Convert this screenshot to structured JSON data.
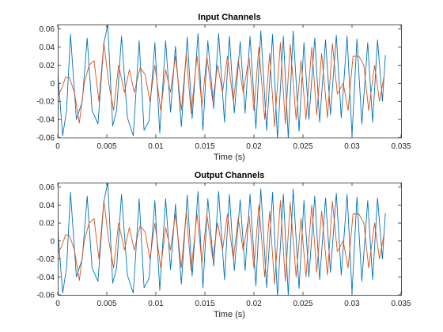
{
  "colors": {
    "series_1": "#0072bd",
    "series_2": "#d95319",
    "axes": "#262626",
    "background": "#ffffff"
  },
  "chart_data": [
    {
      "type": "line",
      "title": "Input Channels",
      "xlabel": "Time (s)",
      "ylabel": "",
      "xlim": [
        0,
        0.035
      ],
      "ylim": [
        -0.06,
        0.065
      ],
      "grid": false,
      "x_ticks": [
        "0",
        "0.005",
        "0.01",
        "0.015",
        "0.02",
        "0.025",
        "0.03",
        "0.035"
      ],
      "x_tick_values": [
        0,
        0.005,
        0.01,
        0.015,
        0.02,
        0.025,
        0.03,
        0.035
      ],
      "y_ticks": [
        "-0.06",
        "-0.04",
        "-0.02",
        "0",
        "0.02",
        "0.04",
        "0.06"
      ],
      "y_tick_values": [
        -0.06,
        -0.04,
        -0.02,
        0,
        0.02,
        0.04,
        0.06
      ],
      "series": [
        {
          "color": "#0072bd",
          "x": [
            0,
            0.0005,
            0.0009,
            0.0013,
            0.0019,
            0.0025,
            0.003,
            0.0035,
            0.0041,
            0.0047,
            0.0051,
            0.0056,
            0.006,
            0.0065,
            0.0071,
            0.0077,
            0.0083,
            0.0088,
            0.0093,
            0.0099,
            0.0104,
            0.011,
            0.0115,
            0.012,
            0.0126,
            0.0132,
            0.0137,
            0.0143,
            0.0148,
            0.0153,
            0.0159,
            0.0164,
            0.017,
            0.0175,
            0.018,
            0.0186,
            0.0191,
            0.0196,
            0.0202,
            0.0207,
            0.0213,
            0.0219,
            0.0224,
            0.023,
            0.0235,
            0.024,
            0.0246,
            0.0251,
            0.0256,
            0.0262,
            0.0267,
            0.0273,
            0.0278,
            0.0284,
            0.0289,
            0.0295,
            0.03,
            0.0305,
            0.031,
            0.0316,
            0.0321,
            0.0326,
            0.0331,
            0.0334
          ],
          "y": [
            0.012,
            -0.058,
            -0.03,
            0.054,
            -0.04,
            -0.02,
            0.05,
            -0.03,
            -0.045,
            0.044,
            0.065,
            -0.047,
            -0.03,
            0.052,
            -0.038,
            -0.058,
            0.047,
            -0.052,
            -0.042,
            0.045,
            -0.055,
            0.047,
            -0.032,
            0.041,
            -0.048,
            0.051,
            -0.039,
            0.055,
            -0.052,
            0.047,
            -0.028,
            0.055,
            -0.043,
            0.052,
            -0.033,
            0.046,
            -0.033,
            0.052,
            -0.05,
            0.058,
            -0.052,
            0.054,
            -0.062,
            0.052,
            -0.061,
            0.058,
            -0.053,
            0.045,
            -0.04,
            0.05,
            -0.043,
            0.048,
            -0.035,
            0.053,
            -0.038,
            0.052,
            -0.058,
            0.049,
            -0.045,
            0.045,
            -0.043,
            0.048,
            -0.02,
            0.031
          ]
        },
        {
          "color": "#d95319",
          "x": [
            0,
            0.0004,
            0.0008,
            0.0012,
            0.0017,
            0.0022,
            0.0027,
            0.0032,
            0.0037,
            0.0042,
            0.0047,
            0.0052,
            0.0057,
            0.0062,
            0.0068,
            0.0073,
            0.0078,
            0.0084,
            0.0089,
            0.0094,
            0.0099,
            0.0105,
            0.011,
            0.0115,
            0.012,
            0.0126,
            0.0131,
            0.0136,
            0.0142,
            0.0147,
            0.0152,
            0.0158,
            0.0163,
            0.0168,
            0.0173,
            0.0179,
            0.0184,
            0.0189,
            0.0195,
            0.02,
            0.0205,
            0.0211,
            0.0216,
            0.0221,
            0.0227,
            0.0232,
            0.0237,
            0.0243,
            0.0248,
            0.0253,
            0.0259,
            0.0264,
            0.0269,
            0.0275,
            0.028,
            0.0285,
            0.0291,
            0.0296,
            0.0301,
            0.0307,
            0.0312,
            0.0317,
            0.0323,
            0.0328,
            0.0333
          ],
          "y": [
            -0.014,
            -0.006,
            0.007,
            0.006,
            -0.01,
            -0.044,
            0.0,
            0.02,
            0.025,
            -0.02,
            0.045,
            0.0,
            -0.03,
            0.02,
            -0.01,
            0.015,
            -0.01,
            0.017,
            0.01,
            -0.02,
            0.02,
            -0.03,
            0.015,
            -0.01,
            0.03,
            -0.03,
            0.032,
            -0.033,
            0.03,
            -0.025,
            0.03,
            -0.02,
            0.02,
            -0.01,
            0.03,
            -0.02,
            0.025,
            -0.01,
            0.028,
            -0.03,
            0.04,
            -0.04,
            0.033,
            -0.048,
            0.045,
            -0.045,
            0.043,
            -0.04,
            0.025,
            -0.04,
            0.04,
            -0.035,
            0.033,
            -0.038,
            0.044,
            -0.012,
            0.0,
            -0.03,
            0.03,
            0.03,
            0.02,
            -0.03,
            0.02,
            -0.02,
            0.01
          ]
        }
      ]
    },
    {
      "type": "line",
      "title": "Output Channels",
      "xlabel": "Time (s)",
      "ylabel": "",
      "xlim": [
        0,
        0.035
      ],
      "ylim": [
        -0.06,
        0.065
      ],
      "grid": false,
      "x_ticks": [
        "0",
        "0.005",
        "0.01",
        "0.015",
        "0.02",
        "0.025",
        "0.03",
        "0.035"
      ],
      "x_tick_values": [
        0,
        0.005,
        0.01,
        0.015,
        0.02,
        0.025,
        0.03,
        0.035
      ],
      "y_ticks": [
        "-0.06",
        "-0.04",
        "-0.02",
        "0",
        "0.02",
        "0.04",
        "0.06"
      ],
      "y_tick_values": [
        -0.06,
        -0.04,
        -0.02,
        0,
        0.02,
        0.04,
        0.06
      ],
      "series": [
        {
          "color": "#0072bd",
          "x": [
            0,
            0.0005,
            0.0009,
            0.0013,
            0.0019,
            0.0025,
            0.003,
            0.0035,
            0.0041,
            0.0047,
            0.0051,
            0.0056,
            0.006,
            0.0065,
            0.0071,
            0.0077,
            0.0083,
            0.0088,
            0.0093,
            0.0099,
            0.0104,
            0.011,
            0.0115,
            0.012,
            0.0126,
            0.0132,
            0.0137,
            0.0143,
            0.0148,
            0.0153,
            0.0159,
            0.0164,
            0.017,
            0.0175,
            0.018,
            0.0186,
            0.0191,
            0.0196,
            0.0202,
            0.0207,
            0.0213,
            0.0219,
            0.0224,
            0.023,
            0.0235,
            0.024,
            0.0246,
            0.0251,
            0.0256,
            0.0262,
            0.0267,
            0.0273,
            0.0278,
            0.0284,
            0.0289,
            0.0295,
            0.03,
            0.0305,
            0.031,
            0.0316,
            0.0321,
            0.0326,
            0.0331,
            0.0334
          ],
          "y": [
            0.012,
            -0.058,
            -0.03,
            0.054,
            -0.04,
            -0.02,
            0.05,
            -0.03,
            -0.045,
            0.044,
            0.065,
            -0.047,
            -0.03,
            0.052,
            -0.038,
            -0.058,
            0.047,
            -0.052,
            -0.042,
            0.045,
            -0.055,
            0.047,
            -0.032,
            0.041,
            -0.048,
            0.051,
            -0.039,
            0.055,
            -0.052,
            0.047,
            -0.028,
            0.055,
            -0.043,
            0.052,
            -0.033,
            0.046,
            -0.033,
            0.052,
            -0.05,
            0.058,
            -0.052,
            0.054,
            -0.062,
            0.052,
            -0.061,
            0.058,
            -0.053,
            0.045,
            -0.04,
            0.05,
            -0.043,
            0.048,
            -0.035,
            0.053,
            -0.038,
            0.052,
            -0.058,
            0.049,
            -0.045,
            0.045,
            -0.043,
            0.048,
            -0.02,
            0.031
          ]
        },
        {
          "color": "#d95319",
          "x": [
            0,
            0.0004,
            0.0008,
            0.0012,
            0.0017,
            0.0022,
            0.0027,
            0.0032,
            0.0037,
            0.0042,
            0.0047,
            0.0052,
            0.0057,
            0.0062,
            0.0068,
            0.0073,
            0.0078,
            0.0084,
            0.0089,
            0.0094,
            0.0099,
            0.0105,
            0.011,
            0.0115,
            0.012,
            0.0126,
            0.0131,
            0.0136,
            0.0142,
            0.0147,
            0.0152,
            0.0158,
            0.0163,
            0.0168,
            0.0173,
            0.0179,
            0.0184,
            0.0189,
            0.0195,
            0.02,
            0.0205,
            0.0211,
            0.0216,
            0.0221,
            0.0227,
            0.0232,
            0.0237,
            0.0243,
            0.0248,
            0.0253,
            0.0259,
            0.0264,
            0.0269,
            0.0275,
            0.028,
            0.0285,
            0.0291,
            0.0296,
            0.0301,
            0.0307,
            0.0312,
            0.0317,
            0.0323,
            0.0328,
            0.0333
          ],
          "y": [
            -0.014,
            -0.006,
            0.007,
            0.006,
            -0.01,
            -0.044,
            0.0,
            0.02,
            0.025,
            -0.02,
            0.045,
            0.0,
            -0.03,
            0.02,
            -0.01,
            0.015,
            -0.01,
            0.017,
            0.01,
            -0.02,
            0.02,
            -0.03,
            0.015,
            -0.01,
            0.03,
            -0.03,
            0.032,
            -0.033,
            0.03,
            -0.025,
            0.03,
            -0.02,
            0.02,
            -0.01,
            0.03,
            -0.02,
            0.025,
            -0.01,
            0.028,
            -0.03,
            0.04,
            -0.04,
            0.033,
            -0.048,
            0.045,
            -0.045,
            0.043,
            -0.04,
            0.025,
            -0.04,
            0.04,
            -0.035,
            0.033,
            -0.038,
            0.044,
            -0.012,
            0.0,
            -0.03,
            0.03,
            0.03,
            0.02,
            -0.03,
            0.02,
            -0.02,
            0.01
          ]
        }
      ]
    }
  ]
}
